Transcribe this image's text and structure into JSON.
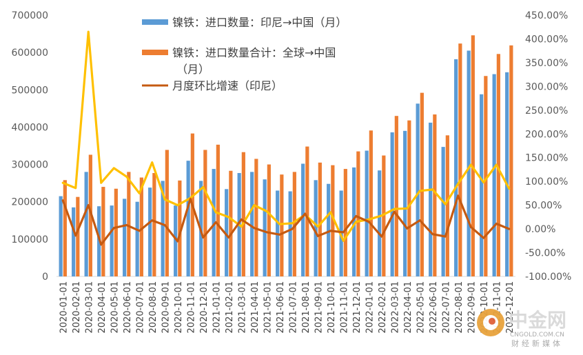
{
  "chart_data": {
    "type": "bar",
    "categories": [
      "2020-01-01",
      "2020-02-01",
      "2020-03-01",
      "2020-04-01",
      "2020-05-01",
      "2020-06-01",
      "2020-07-01",
      "2020-08-01",
      "2020-09-01",
      "2020-10-01",
      "2020-11-01",
      "2020-12-01",
      "2021-01-01",
      "2021-02-01",
      "2021-03-01",
      "2021-04-01",
      "2021-05-01",
      "2021-06-01",
      "2021-07-01",
      "2021-08-01",
      "2021-09-01",
      "2021-10-01",
      "2021-11-01",
      "2021-12-01",
      "2022-01-01",
      "2022-02-01",
      "2022-03-01",
      "2022-04-01",
      "2022-05-01",
      "2022-06-01",
      "2022-07-01",
      "2022-08-01",
      "2022-09-01",
      "2022-10-01",
      "2022-11-01",
      "2022-12-01"
    ],
    "series": [
      {
        "name": "镍铁：进口数量：印尼→中国（月）",
        "axis": "left",
        "kind": "bar",
        "color": "#5B9BD5",
        "values": [
          215000,
          185000,
          280000,
          188000,
          190000,
          208000,
          200000,
          238000,
          256000,
          190000,
          310000,
          256000,
          288000,
          234000,
          277000,
          280000,
          260000,
          230000,
          228000,
          302000,
          258000,
          248000,
          230000,
          292000,
          337000,
          284000,
          386000,
          390000,
          463000,
          412000,
          347000,
          582000,
          605000,
          488000,
          542000,
          547000
        ]
      },
      {
        "name": "镍铁：进口数量合计：全球→中国（月）",
        "axis": "left",
        "kind": "bar",
        "color": "#ED7D31",
        "values": [
          258000,
          213000,
          326000,
          240000,
          235000,
          280000,
          265000,
          277000,
          339000,
          257000,
          383000,
          339000,
          353000,
          283000,
          333000,
          315000,
          300000,
          273000,
          280000,
          348000,
          305000,
          298000,
          288000,
          335000,
          391000,
          324000,
          430000,
          418000,
          492000,
          434000,
          378000,
          624000,
          646000,
          537000,
          596000,
          619000
        ]
      },
      {
        "name": "月度环比增速（印尼）",
        "axis": "right",
        "kind": "line",
        "color": "#C55A11",
        "values": [
          0.6,
          -0.14,
          0.5,
          -0.33,
          0.02,
          0.08,
          -0.04,
          0.18,
          0.08,
          -0.26,
          0.63,
          -0.18,
          0.14,
          -0.18,
          0.2,
          0.02,
          -0.07,
          -0.12,
          0.0,
          0.32,
          -0.15,
          -0.04,
          -0.07,
          0.27,
          0.15,
          -0.16,
          0.36,
          0.01,
          0.18,
          -0.11,
          -0.16,
          0.7,
          0.04,
          -0.19,
          0.11,
          0.0
        ]
      },
      {
        "name": "",
        "axis": "right",
        "kind": "line",
        "color": "#FFC000",
        "values": [
          0.97,
          0.86,
          4.15,
          0.97,
          1.28,
          1.1,
          0.75,
          1.4,
          0.62,
          0.5,
          0.65,
          0.88,
          0.35,
          0.25,
          0.05,
          0.5,
          0.37,
          0.1,
          0.12,
          0.3,
          0.05,
          0.35,
          -0.25,
          0.15,
          0.2,
          0.28,
          0.42,
          0.43,
          0.8,
          0.83,
          0.52,
          0.95,
          1.35,
          0.98,
          1.35,
          0.85
        ]
      }
    ],
    "left_axis": {
      "min": 0,
      "max": 700000,
      "ticks": [
        "0",
        "100000",
        "200000",
        "300000",
        "400000",
        "500000",
        "600000",
        "700000"
      ]
    },
    "right_axis": {
      "min": -1.0,
      "max": 4.5,
      "ticks": [
        "-100.00%",
        "-50.00%",
        "0.00%",
        "50.00%",
        "100.00%",
        "150.00%",
        "200.00%",
        "250.00%",
        "300.00%",
        "350.00%",
        "400.00%",
        "450.00%"
      ]
    },
    "legend": [
      {
        "label": "镍铁：进口数量：印尼→中国（月）",
        "color": "#5B9BD5",
        "kind": "bar"
      },
      {
        "label": "镍铁：进口数量合计：全球→中国（月）",
        "color": "#ED7D31",
        "kind": "bar"
      },
      {
        "label": "月度环比增速（印尼）",
        "color": "#C55A11",
        "kind": "line"
      }
    ],
    "legend_position": "top-center",
    "grid": false
  },
  "watermark": {
    "brand": "中金网",
    "site": "CNGOLD.COM.CN",
    "tagline": "财经新媒体"
  }
}
